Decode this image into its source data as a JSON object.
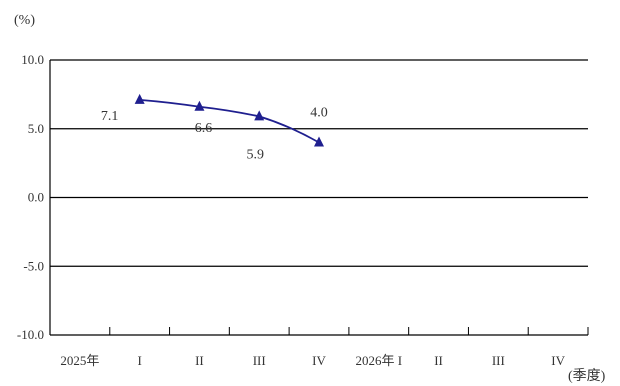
{
  "chart_data": {
    "type": "line",
    "y_unit": "(%)",
    "x_unit": "(季度)",
    "ylim": [
      -10,
      10
    ],
    "yticks": [
      "10.0",
      "5.0",
      "0.0",
      "-5.0",
      "-10.0"
    ],
    "ytick_values": [
      10,
      5,
      0,
      -5,
      -10
    ],
    "grid": true,
    "x_axis_labels": [
      "2025年",
      "I",
      "II",
      "III",
      "IV",
      "2026年 I",
      "II",
      "III",
      "IV"
    ],
    "series": [
      {
        "color": "#1f1f8f",
        "marker": "triangle",
        "categories": [
          "I",
          "II",
          "III",
          "IV"
        ],
        "values": [
          7.1,
          6.6,
          5.9,
          4.0
        ],
        "labels": [
          "7.1",
          "6.6",
          "5.9",
          "4.0"
        ]
      }
    ],
    "colors": {
      "line": "#1f1f8f",
      "grid": "#000000",
      "text": "#333333"
    }
  }
}
